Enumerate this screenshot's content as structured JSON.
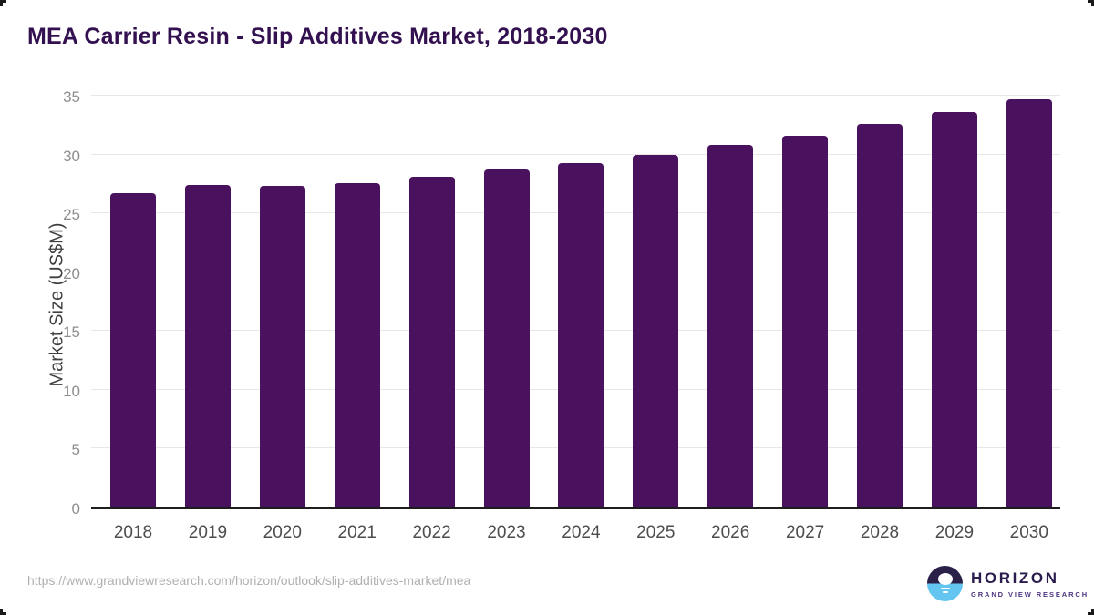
{
  "page": {
    "title": "MEA Carrier Resin - Slip Additives Market, 2018-2030"
  },
  "chart_data": {
    "type": "bar",
    "title": "MEA Carrier Resin - Slip Additives Market, 2018-2030",
    "categories": [
      "2018",
      "2019",
      "2020",
      "2021",
      "2022",
      "2023",
      "2024",
      "2025",
      "2026",
      "2027",
      "2028",
      "2029",
      "2030"
    ],
    "values": [
      26.7,
      27.4,
      27.3,
      27.6,
      28.1,
      28.7,
      29.3,
      30.0,
      30.8,
      31.6,
      32.6,
      33.6,
      34.7
    ],
    "xlabel": "",
    "ylabel": "Market Size (US$M)",
    "ylim": [
      0,
      35
    ],
    "yticks": [
      0,
      5,
      10,
      15,
      20,
      25,
      30,
      35
    ],
    "grid": "horizontal-only",
    "legend": "none",
    "bar_color": "#4a115e"
  },
  "footer": {
    "source_url": "https://www.grandviewresearch.com/horizon/outlook/slip-additives-market/mea",
    "logo": {
      "name": "HORIZON",
      "tagline": "GRAND VIEW RESEARCH"
    }
  },
  "colors": {
    "bar": "#4a115e",
    "title_text": "#331150",
    "axis_line": "#1d1d1d",
    "gridline": "#e7e7e7",
    "y_tick_text": "#8e8e8e",
    "x_tick_text": "#4d4d4d",
    "url_text": "#b0b0b0",
    "logo_navy": "#2b2148",
    "logo_blue": "#63c5f0"
  }
}
